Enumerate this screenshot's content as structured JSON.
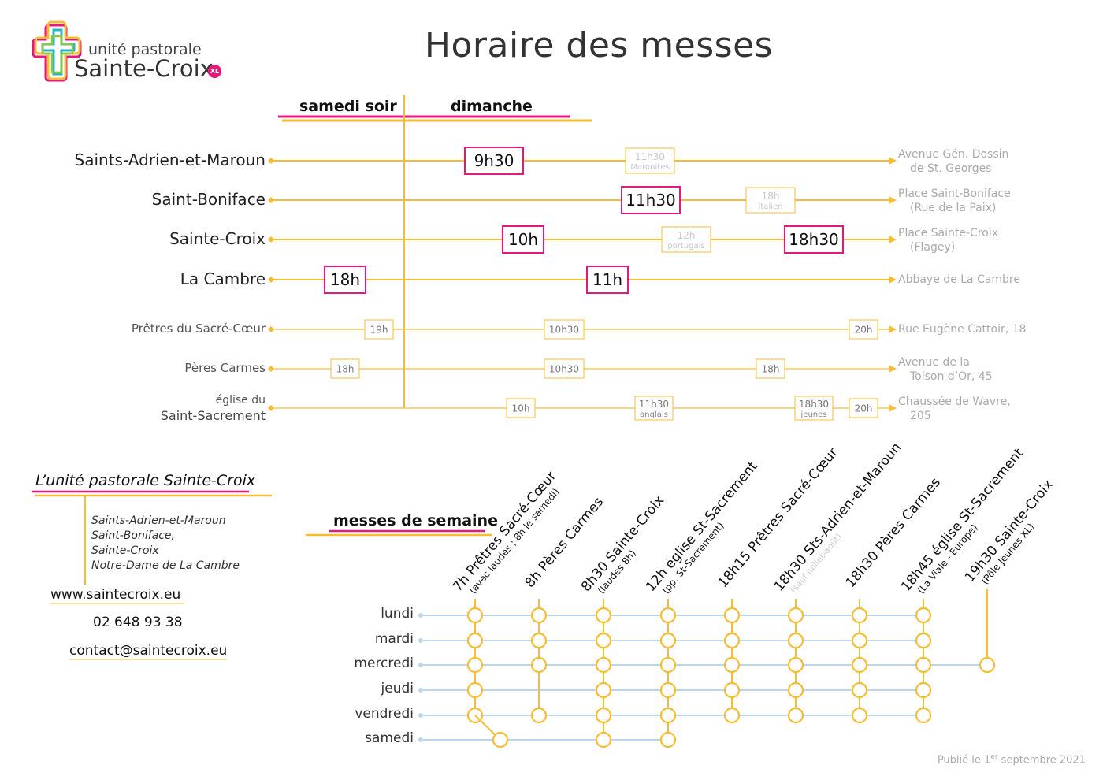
{
  "title": "Horaire des messes",
  "logo": {
    "line1": "unité pastorale",
    "line2": "Sainte-Croix",
    "badge": "XL"
  },
  "colors": {
    "accent": "#f6bd33",
    "pink": "#e6177d",
    "dots": "#bcd7ea"
  },
  "headers": {
    "saturday": "samedi soir",
    "sunday": "dimanche"
  },
  "churches": [
    {
      "name": "Saints-Adrien-et-Maroun",
      "address": [
        "Avenue Gén. Dossin",
        "de St. Georges"
      ],
      "masses": [
        {
          "time": "9h30",
          "note": "",
          "major": true
        },
        {
          "time": "11h30",
          "note": "Maronites",
          "major": false
        }
      ]
    },
    {
      "name": "Saint-Boniface",
      "address": [
        "Place Saint-Boniface",
        "(Rue de la Paix)"
      ],
      "masses": [
        {
          "time": "11h30",
          "note": "",
          "major": true
        },
        {
          "time": "18h",
          "note": "italien",
          "major": false
        }
      ]
    },
    {
      "name": "Sainte-Croix",
      "address": [
        "Place Sainte-Croix",
        "(Flagey)"
      ],
      "masses": [
        {
          "time": "10h",
          "note": "",
          "major": true
        },
        {
          "time": "12h",
          "note": "portugais",
          "major": false
        },
        {
          "time": "18h30",
          "note": "",
          "major": true
        }
      ]
    },
    {
      "name": "La Cambre",
      "address": [
        "Abbaye de La Cambre"
      ],
      "masses": [
        {
          "time": "18h",
          "note": "",
          "major": true
        },
        {
          "time": "11h",
          "note": "",
          "major": true
        }
      ]
    },
    {
      "name": "Prêtres du Sacré-Cœur",
      "address": [
        "Rue Eugène Cattoir, 18"
      ],
      "masses": [
        {
          "time": "19h",
          "note": ""
        },
        {
          "time": "10h30",
          "note": ""
        },
        {
          "time": "20h",
          "note": ""
        }
      ]
    },
    {
      "name": "Pères Carmes",
      "address": [
        "Avenue de la",
        "Toison d’Or, 45"
      ],
      "masses": [
        {
          "time": "18h",
          "note": ""
        },
        {
          "time": "10h30",
          "note": ""
        },
        {
          "time": "18h",
          "note": ""
        }
      ]
    },
    {
      "name_line1": "église du",
      "name_line2": "Saint-Sacrement",
      "address": [
        "Chaussée de Wavre,",
        "205"
      ],
      "masses": [
        {
          "time": "10h",
          "note": ""
        },
        {
          "time": "11h30",
          "note": "anglais"
        },
        {
          "time": "18h30",
          "note": "jeunes"
        },
        {
          "time": "20h",
          "note": ""
        }
      ]
    }
  ],
  "unite": {
    "title": "L’unité pastorale Sainte-Croix",
    "members": [
      "Saints-Adrien-et-Maroun",
      "Saint-Boniface,",
      "Sainte-Croix",
      "Notre-Dame de La Cambre"
    ],
    "website": "www.saintecroix.eu",
    "phone": "02 648 93 38",
    "email": "contact@saintecroix.eu"
  },
  "weekday": {
    "title": "messes de semaine",
    "days": [
      "lundi",
      "mardi",
      "mercredi",
      "jeudi",
      "vendredi",
      "samedi"
    ],
    "columns": [
      {
        "label": "7h Prêtres Sacré-Cœur",
        "sub": "(avec laudes ; 8h le samedi)",
        "faint": "",
        "days": [
          0,
          1,
          2,
          3,
          4,
          5
        ]
      },
      {
        "label": "8h Pères Carmes",
        "sub": "",
        "faint": "",
        "days": [
          0,
          1,
          2,
          4
        ]
      },
      {
        "label": "8h30 Sainte-Croix",
        "sub": "(laudes 8h)",
        "faint": "",
        "days": [
          0,
          1,
          2,
          3,
          4,
          5
        ]
      },
      {
        "label": "12h église St-Sacrement",
        "sub": "(pp. St-Sacrement)",
        "faint": "",
        "days": [
          0,
          1,
          2,
          3,
          4,
          5
        ]
      },
      {
        "label": "18h15 Prêtres Sacré-Cœur",
        "sub": "",
        "faint": "",
        "days": [
          0,
          1,
          2,
          3,
          4
        ]
      },
      {
        "label": "18h30 Sts-Adrien-et-Maroun",
        "sub": "",
        "faint": "(sauf juillet-août)",
        "days": [
          0,
          1,
          2,
          3,
          4
        ]
      },
      {
        "label": "18h30 Pères Carmes",
        "sub": "",
        "faint": "",
        "days": [
          0,
          1,
          2,
          3,
          4
        ]
      },
      {
        "label": "18h45 église St-Sacrement",
        "sub": "(La Viale - Europe)",
        "faint": "",
        "days": [
          0,
          1,
          2,
          3,
          4
        ]
      },
      {
        "label": "19h30 Sainte-Croix",
        "sub": "(Pôle Jeunes XL)",
        "faint": "",
        "days": [
          2
        ]
      }
    ]
  },
  "published": {
    "prefix": "Publié le 1",
    "sup": "er",
    "suffix": " septembre 2021"
  }
}
